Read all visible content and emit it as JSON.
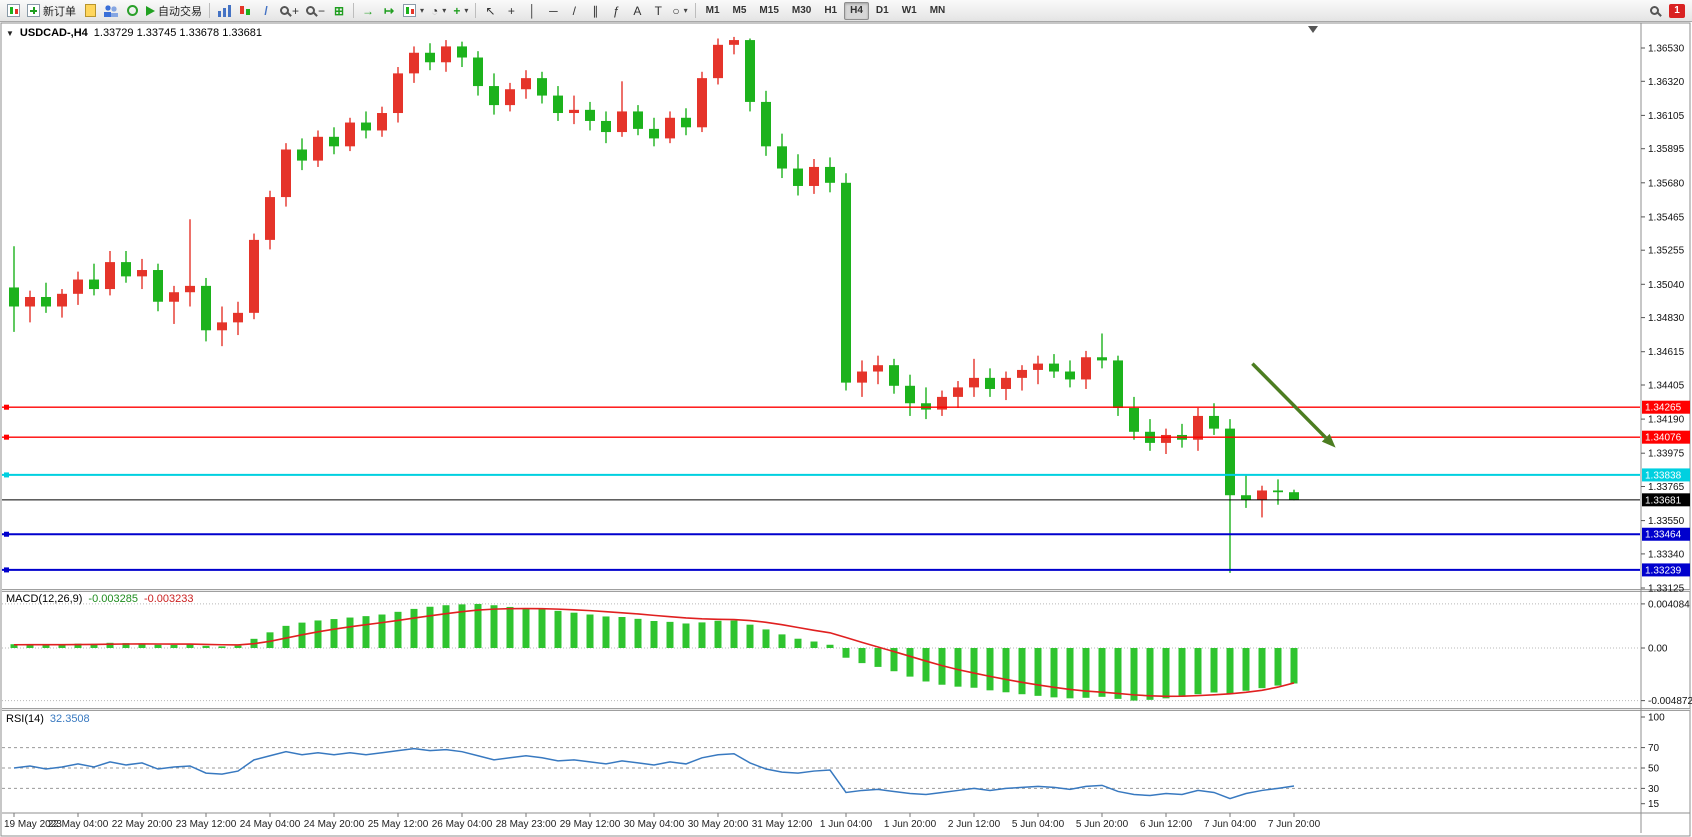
{
  "toolbar": {
    "new_order_label": "新订单",
    "auto_trading_label": "自动交易",
    "timeframes": [
      "M1",
      "M5",
      "M15",
      "M30",
      "H1",
      "H4",
      "D1",
      "W1",
      "MN"
    ],
    "active_timeframe": "H4",
    "notification_count": "1"
  },
  "icons": {
    "one_click": "▼",
    "dropdown": "▾",
    "cursor": "↖",
    "crosshair": "+",
    "vertical_line": "│",
    "horizontal_line": "─",
    "trendline": "/",
    "channel": "∥",
    "fibonacci": "ƒ",
    "text": "A",
    "label": "T",
    "shapes": "○",
    "zoom_in": "+",
    "zoom_out": "−",
    "tile": "⊞",
    "auto_scroll": "→",
    "chart_shift": "↦",
    "clock": "◔",
    "indicator": "+"
  },
  "chart": {
    "symbol_period": "USDCAD-,H4",
    "ohlc": "1.33729 1.33745 1.33678 1.33681"
  },
  "chart_data": {
    "type": "candlestick",
    "title": "USDCAD-,H4",
    "ohlc_display": {
      "open": "1.33729",
      "high": "1.33745",
      "low": "1.33678",
      "close": "1.33681"
    },
    "up_color": "#e5342a",
    "down_color": "#1cb21c",
    "y_range": [
      1.33125,
      1.3653
    ],
    "y_ticks": [
      "1.36530",
      "1.36320",
      "1.36105",
      "1.35895",
      "1.35680",
      "1.35465",
      "1.35255",
      "1.35040",
      "1.34830",
      "1.34615",
      "1.34405",
      "1.34190",
      "1.33975",
      "1.33765",
      "1.33550",
      "1.33340",
      "1.33125"
    ],
    "time_labels": [
      "19 May 2023",
      "22 May 04:00",
      "22 May 20:00",
      "23 May 12:00",
      "24 May 04:00",
      "24 May 20:00",
      "25 May 12:00",
      "26 May 04:00",
      "28 May 23:00",
      "29 May 12:00",
      "30 May 04:00",
      "30 May 20:00",
      "31 May 12:00",
      "1 Jun 04:00",
      "1 Jun 20:00",
      "2 Jun 12:00",
      "5 Jun 04:00",
      "5 Jun 20:00",
      "6 Jun 12:00",
      "7 Jun 04:00",
      "7 Jun 20:00"
    ],
    "label_step": 4,
    "candles": [
      [
        1.3502,
        1.3528,
        1.3474,
        1.349
      ],
      [
        1.349,
        1.35,
        1.348,
        1.3496
      ],
      [
        1.3496,
        1.3505,
        1.3486,
        1.349
      ],
      [
        1.349,
        1.3501,
        1.3483,
        1.3498
      ],
      [
        1.3498,
        1.3512,
        1.3491,
        1.3507
      ],
      [
        1.3507,
        1.3517,
        1.3497,
        1.3501
      ],
      [
        1.3501,
        1.3525,
        1.3497,
        1.3518
      ],
      [
        1.3518,
        1.3525,
        1.3505,
        1.3509
      ],
      [
        1.3509,
        1.352,
        1.3501,
        1.3513
      ],
      [
        1.3513,
        1.3517,
        1.3487,
        1.3493
      ],
      [
        1.3493,
        1.3503,
        1.3479,
        1.3499
      ],
      [
        1.3499,
        1.3545,
        1.349,
        1.3503
      ],
      [
        1.3503,
        1.3508,
        1.3468,
        1.3475
      ],
      [
        1.3475,
        1.349,
        1.3465,
        1.348
      ],
      [
        1.348,
        1.3493,
        1.3472,
        1.3486
      ],
      [
        1.3486,
        1.3536,
        1.3482,
        1.3532
      ],
      [
        1.3532,
        1.3563,
        1.3526,
        1.3559
      ],
      [
        1.3559,
        1.3593,
        1.3553,
        1.3589
      ],
      [
        1.3589,
        1.3596,
        1.3576,
        1.3582
      ],
      [
        1.3582,
        1.3601,
        1.3578,
        1.3597
      ],
      [
        1.3597,
        1.3603,
        1.3586,
        1.3591
      ],
      [
        1.3591,
        1.3609,
        1.3588,
        1.3606
      ],
      [
        1.3606,
        1.3613,
        1.3596,
        1.3601
      ],
      [
        1.3601,
        1.3616,
        1.3597,
        1.3612
      ],
      [
        1.3612,
        1.3641,
        1.3606,
        1.3637
      ],
      [
        1.3637,
        1.3654,
        1.3631,
        1.365
      ],
      [
        1.365,
        1.3656,
        1.3639,
        1.3644
      ],
      [
        1.3644,
        1.3658,
        1.3638,
        1.3654
      ],
      [
        1.3654,
        1.3657,
        1.3641,
        1.3647
      ],
      [
        1.3647,
        1.3651,
        1.3623,
        1.3629
      ],
      [
        1.3629,
        1.3637,
        1.3611,
        1.3617
      ],
      [
        1.3617,
        1.3631,
        1.3613,
        1.3627
      ],
      [
        1.3627,
        1.3639,
        1.3621,
        1.3634
      ],
      [
        1.3634,
        1.3638,
        1.3618,
        1.3623
      ],
      [
        1.3623,
        1.3629,
        1.3607,
        1.3612
      ],
      [
        1.3612,
        1.3623,
        1.3605,
        1.3614
      ],
      [
        1.3614,
        1.3619,
        1.3601,
        1.3607
      ],
      [
        1.3607,
        1.3613,
        1.3593,
        1.36
      ],
      [
        1.36,
        1.3632,
        1.3597,
        1.3613
      ],
      [
        1.3613,
        1.3617,
        1.3598,
        1.3602
      ],
      [
        1.3602,
        1.3609,
        1.3591,
        1.3596
      ],
      [
        1.3596,
        1.3613,
        1.3593,
        1.3609
      ],
      [
        1.3609,
        1.3615,
        1.3598,
        1.3603
      ],
      [
        1.3603,
        1.3638,
        1.36,
        1.3634
      ],
      [
        1.3634,
        1.3659,
        1.363,
        1.3655
      ],
      [
        1.3655,
        1.366,
        1.3649,
        1.3658
      ],
      [
        1.3658,
        1.3659,
        1.3613,
        1.3619
      ],
      [
        1.3619,
        1.3626,
        1.3585,
        1.3591
      ],
      [
        1.3591,
        1.3599,
        1.3571,
        1.3577
      ],
      [
        1.3577,
        1.3586,
        1.356,
        1.3566
      ],
      [
        1.3566,
        1.3583,
        1.3561,
        1.3578
      ],
      [
        1.3578,
        1.3584,
        1.3562,
        1.3568
      ],
      [
        1.3568,
        1.3574,
        1.3437,
        1.3442
      ],
      [
        1.3442,
        1.3456,
        1.3433,
        1.3449
      ],
      [
        1.3449,
        1.3459,
        1.3441,
        1.3453
      ],
      [
        1.3453,
        1.3457,
        1.3435,
        1.344
      ],
      [
        1.344,
        1.3447,
        1.3421,
        1.3429
      ],
      [
        1.3429,
        1.3439,
        1.3419,
        1.3425
      ],
      [
        1.3425,
        1.3437,
        1.3421,
        1.3433
      ],
      [
        1.3433,
        1.3443,
        1.3426,
        1.3439
      ],
      [
        1.3439,
        1.3457,
        1.3433,
        1.3445
      ],
      [
        1.3445,
        1.3451,
        1.3433,
        1.3438
      ],
      [
        1.3438,
        1.3449,
        1.3431,
        1.3445
      ],
      [
        1.3445,
        1.3453,
        1.3437,
        1.345
      ],
      [
        1.345,
        1.3459,
        1.3441,
        1.3454
      ],
      [
        1.3454,
        1.346,
        1.3445,
        1.3449
      ],
      [
        1.3449,
        1.3456,
        1.3439,
        1.3444
      ],
      [
        1.3444,
        1.3462,
        1.3438,
        1.3458
      ],
      [
        1.3458,
        1.3473,
        1.3451,
        1.3456
      ],
      [
        1.3456,
        1.3459,
        1.3421,
        1.3426
      ],
      [
        1.3426,
        1.3433,
        1.3406,
        1.3411
      ],
      [
        1.3411,
        1.3419,
        1.3399,
        1.3404
      ],
      [
        1.3404,
        1.3413,
        1.3397,
        1.3409
      ],
      [
        1.3409,
        1.3416,
        1.3401,
        1.3406
      ],
      [
        1.3406,
        1.3426,
        1.3399,
        1.3421
      ],
      [
        1.3421,
        1.3429,
        1.3409,
        1.3413
      ],
      [
        1.3413,
        1.3419,
        1.3322,
        1.3371
      ],
      [
        1.3371,
        1.3384,
        1.3363,
        1.3368
      ],
      [
        1.3368,
        1.3377,
        1.3357,
        1.3374
      ],
      [
        1.3374,
        1.3381,
        1.3365,
        1.33729
      ],
      [
        1.33729,
        1.33745,
        1.33678,
        1.33681
      ]
    ],
    "hlines": [
      {
        "price": 1.34265,
        "label": "1.34265",
        "color": "#ff0000",
        "width": 1.3
      },
      {
        "price": 1.34076,
        "label": "1.34076",
        "color": "#ff0000",
        "width": 1.3
      },
      {
        "price": 1.33838,
        "label": "1.33838",
        "color": "#00d0e0",
        "width": 2
      },
      {
        "price": 1.33681,
        "label": "1.33681",
        "color": "#000000",
        "width": 1,
        "current": true
      },
      {
        "price": 1.33464,
        "label": "1.33464",
        "color": "#0000cd",
        "width": 2
      },
      {
        "price": 1.33239,
        "label": "1.33239",
        "color": "#0000cd",
        "width": 2
      }
    ],
    "annotation_arrow": {
      "index_from": 77.4,
      "price_from": 1.3454,
      "index_to": 82.6,
      "price_to": 1.3401,
      "color": "#4c7d21"
    },
    "macd": {
      "label": "MACD(12,26,9)",
      "value": "-0.003285",
      "signal_value": "-0.003233",
      "axis": [
        "0.004084",
        "0.00",
        "-0.004872"
      ],
      "axis_values": [
        0.004084,
        0,
        -0.004872
      ],
      "hist_color": "#2fc42f",
      "signal_color": "#e02020",
      "histogram": [
        0.00035,
        0.0003,
        0.00028,
        0.00032,
        0.0004,
        0.00038,
        0.00048,
        0.00045,
        0.00042,
        0.0003,
        0.00028,
        0.00035,
        0.0002,
        0.00015,
        0.00022,
        0.00085,
        0.00145,
        0.00205,
        0.00235,
        0.00255,
        0.00268,
        0.00282,
        0.00295,
        0.0031,
        0.00335,
        0.00362,
        0.00382,
        0.00396,
        0.00404,
        0.00408,
        0.00396,
        0.0038,
        0.0037,
        0.00362,
        0.00344,
        0.00327,
        0.0031,
        0.00292,
        0.00287,
        0.0027,
        0.0025,
        0.00242,
        0.00227,
        0.00237,
        0.00252,
        0.00254,
        0.00216,
        0.00172,
        0.00126,
        0.00086,
        0.0006,
        0.0003,
        -0.0009,
        -0.0014,
        -0.00175,
        -0.00215,
        -0.00265,
        -0.0031,
        -0.0034,
        -0.00358,
        -0.00368,
        -0.00392,
        -0.0041,
        -0.00428,
        -0.00443,
        -0.00457,
        -0.00466,
        -0.00461,
        -0.00452,
        -0.00471,
        -0.00487,
        -0.0048,
        -0.00466,
        -0.00452,
        -0.00428,
        -0.00412,
        -0.00422,
        -0.00396,
        -0.00372,
        -0.00348,
        -0.003285
      ],
      "signal": [
        0.0003,
        0.00031,
        0.00031,
        0.00031,
        0.00032,
        0.00033,
        0.00035,
        0.00037,
        0.00038,
        0.00037,
        0.00036,
        0.00036,
        0.00033,
        0.0003,
        0.00028,
        0.0004,
        0.00062,
        0.00092,
        0.00122,
        0.0015,
        0.00174,
        0.00196,
        0.00216,
        0.00235,
        0.00255,
        0.00277,
        0.00298,
        0.00318,
        0.00336,
        0.00351,
        0.0036,
        0.00364,
        0.00365,
        0.00364,
        0.0036,
        0.00354,
        0.00346,
        0.00336,
        0.00326,
        0.00315,
        0.00302,
        0.0029,
        0.00278,
        0.0027,
        0.00266,
        0.00263,
        0.00254,
        0.00238,
        0.00216,
        0.0019,
        0.00164,
        0.00141,
        0.00097,
        0.00052,
        9e-05,
        -0.00033,
        -0.00077,
        -0.00121,
        -0.00163,
        -0.002,
        -0.00232,
        -0.00263,
        -0.00291,
        -0.00318,
        -0.00342,
        -0.00364,
        -0.00384,
        -0.00399,
        -0.00409,
        -0.00421,
        -0.00434,
        -0.00443,
        -0.00447,
        -0.00446,
        -0.00441,
        -0.00433,
        -0.00424,
        -0.0041,
        -0.00392,
        -0.00362,
        -0.003233
      ]
    },
    "rsi": {
      "label": "RSI(14)",
      "value": "32.3508",
      "color": "#3879c0",
      "axis": [
        "100",
        "70",
        "50",
        "30",
        "15"
      ],
      "axis_values": [
        100,
        70,
        50,
        30,
        15
      ],
      "levels": [
        70,
        50,
        30
      ],
      "values": [
        50,
        52,
        49,
        51,
        54,
        51,
        56,
        53,
        55,
        49,
        51,
        52,
        45,
        44,
        47,
        58,
        62,
        66,
        63,
        65,
        63,
        65,
        63,
        65,
        67,
        69,
        67,
        68,
        66,
        62,
        58,
        60,
        62,
        60,
        57,
        58,
        56,
        54,
        57,
        55,
        53,
        56,
        54,
        60,
        63,
        64,
        55,
        49,
        46,
        45,
        47,
        48,
        26,
        28,
        29,
        27,
        25,
        24,
        26,
        28,
        30,
        28,
        30,
        31,
        32,
        31,
        29,
        32,
        33,
        27,
        24,
        23,
        25,
        24,
        28,
        26,
        20,
        25,
        28,
        30,
        32.35
      ]
    }
  }
}
